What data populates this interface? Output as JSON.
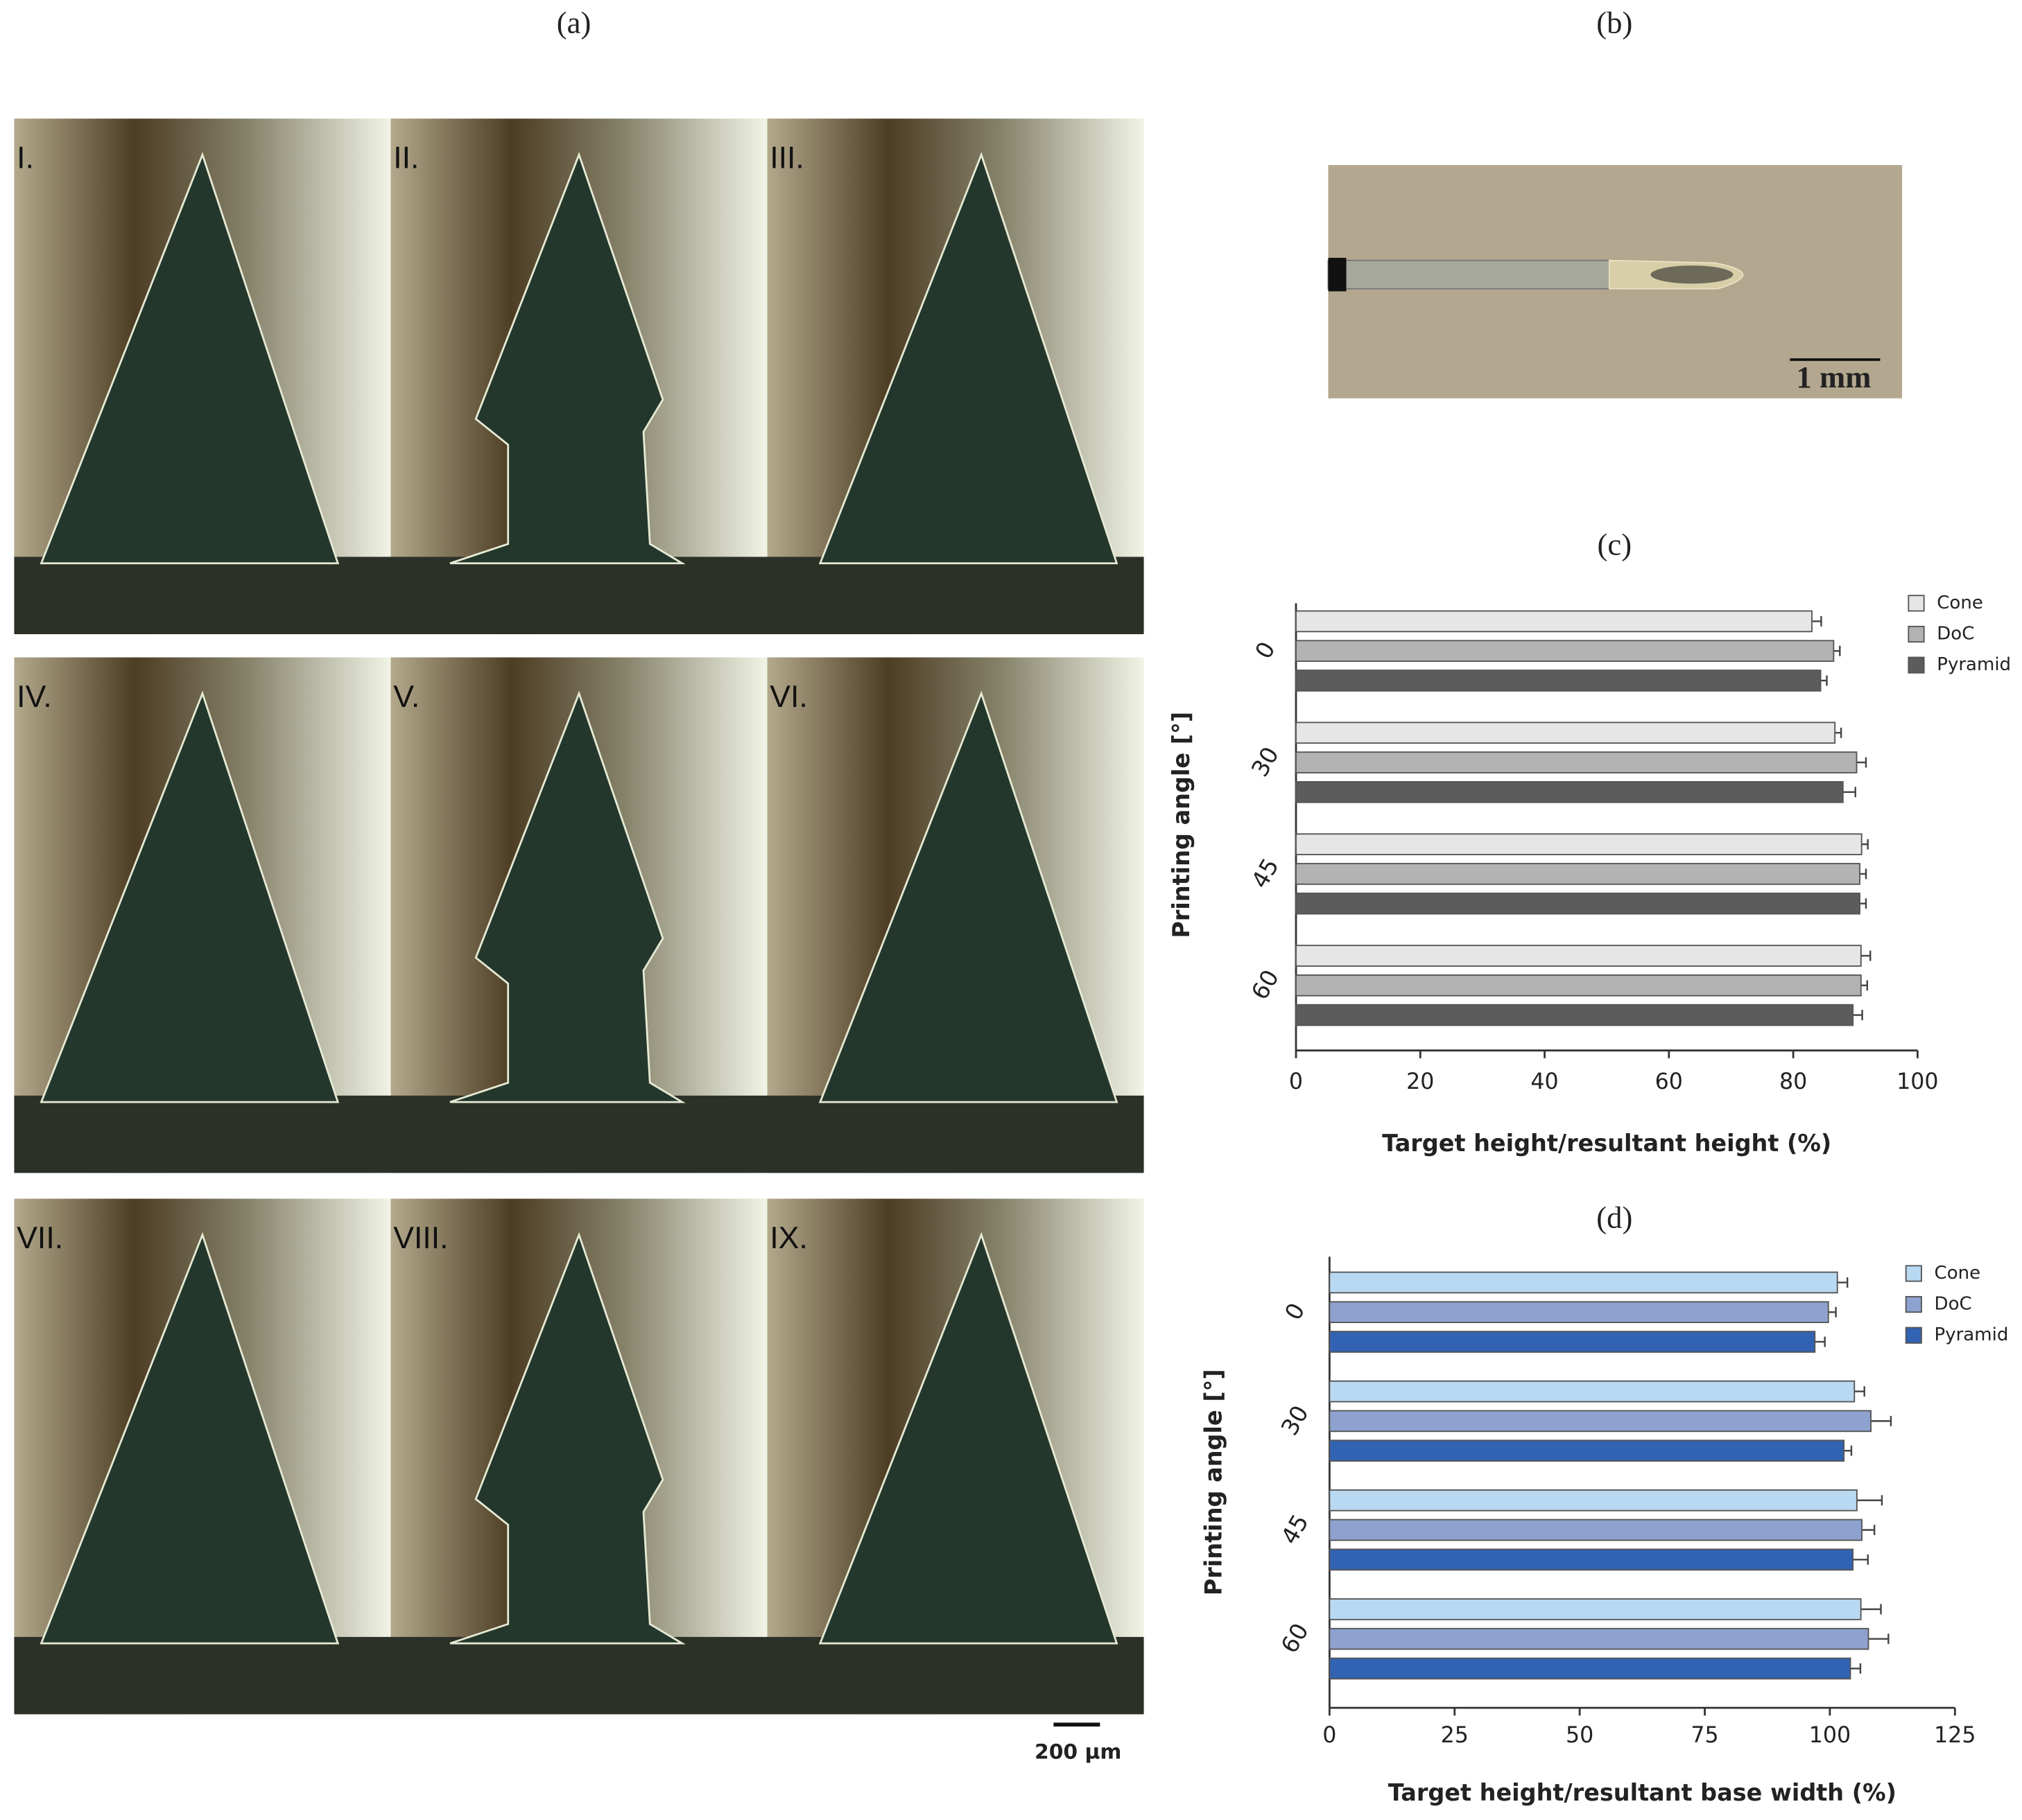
{
  "panels": {
    "a": "(a)",
    "b": "(b)",
    "c": "(c)",
    "d": "(d)"
  },
  "photos": {
    "labels": [
      "I.",
      "II.",
      "III.",
      "IV.",
      "V.",
      "VI.",
      "VII.",
      "VIII.",
      "IX."
    ]
  },
  "scale_bars": {
    "a": "200 µm",
    "b": "1 mm"
  },
  "chart_data": [
    {
      "type": "hbar",
      "x_label": "Target height/resultant height (%)",
      "y_label": "Printing angle [°]",
      "categories": [
        "0",
        "30",
        "45",
        "60"
      ],
      "series": [
        {
          "name": "Cone",
          "color": "#e6e6e6",
          "values": [
            83,
            86.7,
            91,
            90.9
          ],
          "errors": [
            1.5,
            1,
            1,
            1.5
          ]
        },
        {
          "name": "DoC",
          "color": "#b3b3b3",
          "values": [
            86.5,
            90.2,
            90.7,
            90.9
          ],
          "errors": [
            1,
            1.5,
            1,
            1
          ]
        },
        {
          "name": "Pyramid",
          "color": "#5c5c5c",
          "values": [
            84.4,
            88,
            90.7,
            89.6
          ],
          "errors": [
            1,
            2,
            1,
            1.5
          ]
        }
      ],
      "xlim": [
        0,
        100
      ],
      "xticks": [
        0,
        20,
        40,
        60,
        80,
        100
      ],
      "legend": "upper right"
    },
    {
      "type": "hbar",
      "x_label": "Target height/resultant base width (%)",
      "y_label": "Printing angle [°]",
      "categories": [
        "0",
        "30",
        "45",
        "60"
      ],
      "series": [
        {
          "name": "Cone",
          "color": "#b9d9f2",
          "values": [
            101.5,
            104.9,
            105.4,
            106.2
          ],
          "errors": [
            2,
            2,
            5,
            4
          ]
        },
        {
          "name": "DoC",
          "color": "#8ea2cf",
          "values": [
            99.7,
            108.2,
            106.4,
            107.7
          ],
          "errors": [
            1.5,
            4,
            2.5,
            4
          ]
        },
        {
          "name": "Pyramid",
          "color": "#3262b2",
          "values": [
            97,
            102.8,
            104.6,
            104.1
          ],
          "errors": [
            2,
            1.5,
            3,
            2
          ]
        }
      ],
      "xlim": [
        0,
        125
      ],
      "xticks": [
        0,
        25,
        50,
        75,
        100,
        125
      ],
      "legend": "upper right"
    }
  ]
}
